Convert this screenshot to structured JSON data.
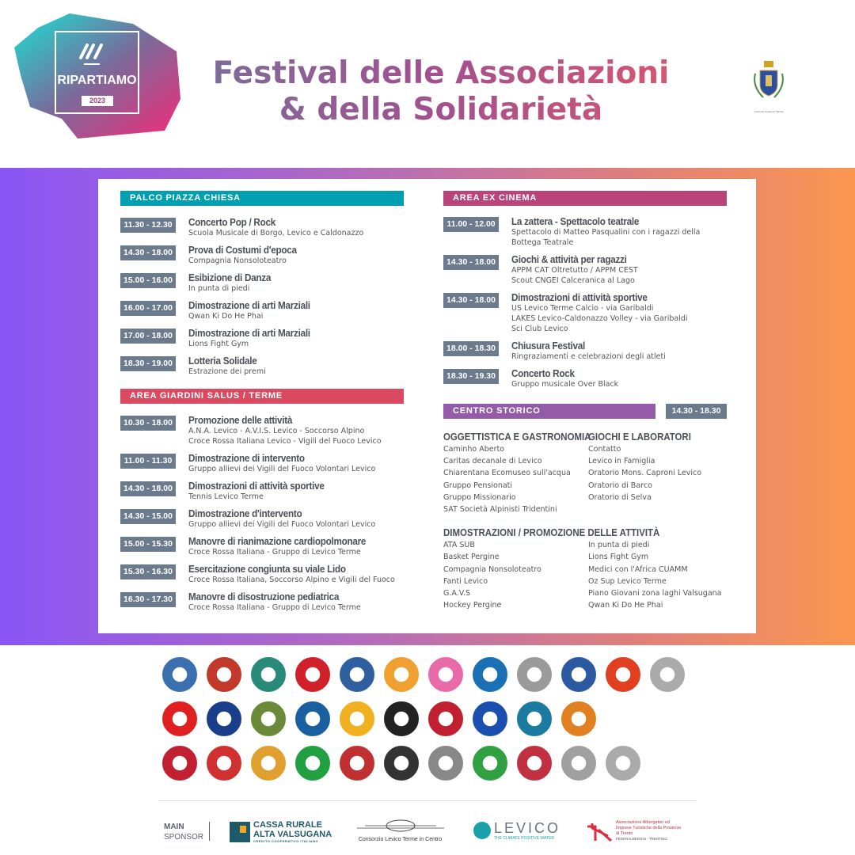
{
  "header": {
    "logo_text": "RIPARTIAMO",
    "logo_year": "2023",
    "title_line1": "Festival delle Associazioni",
    "title_line2": "& della Solidarietà",
    "crest_caption": "Comune di Levico Terme"
  },
  "colors": {
    "teal": "#00a0b0",
    "red": "#dc4a62",
    "magenta": "#b8447a",
    "purple": "#945ca8",
    "time_badge": "#6b7a8c",
    "band_left": "#8a55f6",
    "band_right": "#fb9650"
  },
  "palco": {
    "title": "PALCO PIAZZA CHIESA",
    "events": [
      {
        "time": "11.30 - 12.30",
        "title": "Concerto Pop / Rock",
        "sub": [
          "Scuola Musicale di Borgo, Levico e Caldonazzo"
        ]
      },
      {
        "time": "14.30 - 18.00",
        "title": "Prova di Costumi d'epoca",
        "sub": [
          "Compagnia Nonsoloteatro"
        ]
      },
      {
        "time": "15.00 - 16.00",
        "title": "Esibizione di Danza",
        "sub": [
          "In punta di piedi"
        ]
      },
      {
        "time": "16.00 - 17.00",
        "title": "Dimostrazione di arti Marziali",
        "sub": [
          "Qwan Ki Do He Phai"
        ]
      },
      {
        "time": "17.00 - 18.00",
        "title": "Dimostrazione di arti Marziali",
        "sub": [
          "Lions Fight Gym"
        ]
      },
      {
        "time": "18.30 - 19.00",
        "title": "Lotteria Solidale",
        "sub": [
          "Estrazione dei premi"
        ]
      }
    ]
  },
  "giardini": {
    "title": "AREA GIARDINI SALUS / TERME",
    "events": [
      {
        "time": "10.30 - 18.00",
        "title": "Promozione delle attività",
        "sub": [
          "A.N.A. Levico - A.V.I.S. Levico - Soccorso Alpino",
          "Croce Rossa Italiana Levico - Vigili del Fuoco Levico"
        ]
      },
      {
        "time": "11.00 - 11.30",
        "title": "Dimostrazione di intervento",
        "sub": [
          "Gruppo allievi dei Vigili del Fuoco Volontari Levico"
        ]
      },
      {
        "time": "14.30 - 18.00",
        "title": "Dimostrazioni di attività sportive",
        "sub": [
          "Tennis Levico Terme"
        ]
      },
      {
        "time": "14.30 - 15.00",
        "title": "Dimostrazione d'intervento",
        "sub": [
          "Gruppo allievi dei Vigili del Fuoco Volontari Levico"
        ]
      },
      {
        "time": "15.00 - 15.30",
        "title": "Manovre di rianimazione cardiopolmonare",
        "sub": [
          "Croce Rossa Italiana - Gruppo di Levico Terme"
        ]
      },
      {
        "time": "15.30 - 16.30",
        "title": "Esercitazione congiunta su viale Lido",
        "sub": [
          "Croce Rossa Italiana, Soccorso Alpino e Vigili del Fuoco"
        ]
      },
      {
        "time": "16.30 - 17.30",
        "title": "Manovre di disostruzione pediatrica",
        "sub": [
          "Croce Rossa Italiana - Gruppo di Levico Terme"
        ]
      }
    ]
  },
  "cinema": {
    "title": "AREA EX CINEMA",
    "events": [
      {
        "time": "11.00 - 12.00",
        "title": "La zattera - Spettacolo teatrale",
        "sub": [
          "Spettacolo di Matteo Pasqualini con i ragazzi della",
          "Bottega Teatrale"
        ]
      },
      {
        "time": "14.30 - 18.00",
        "title": "Giochi & attività per ragazzi",
        "sub": [
          "APPM CAT Oltretutto / APPM CEST",
          "Scout CNGEI Calceranica al Lago"
        ]
      },
      {
        "time": "14.30 - 18.00",
        "title": "Dimostrazioni di attività sportive",
        "sub": [
          "US Levico Terme Calcio - via Garibaldi",
          "LAKES Levico-Caldonazzo Volley - via Garibaldi",
          "Sci Club Levico"
        ]
      },
      {
        "time": "18.00 - 18.30",
        "title": "Chiusura Festival",
        "sub": [
          "Ringraziamenti e celebrazioni degli atleti"
        ]
      },
      {
        "time": "18.30 - 19.30",
        "title": "Concerto Rock",
        "sub": [
          "Gruppo musicale Over Black"
        ]
      }
    ]
  },
  "centro": {
    "title": "CENTRO STORICO",
    "time": "14.30 - 18.30",
    "oggettistica": {
      "title": "OGGETTISTICA E GASTRONOMIA",
      "items": [
        "Caminho Aberto",
        "Caritas decanale di Levico",
        "Chiarentana Ecomuseo sull'acqua",
        "Gruppo Pensionati",
        "Gruppo Missionario",
        "SAT Società Alpinisti Tridentini"
      ]
    },
    "giochi": {
      "title": "GIOCHI E LABORATORI",
      "items": [
        "Contatto",
        "Levico in Famiglia",
        "Oratorio Mons. Caproni Levico",
        "Oratorio di Barco",
        "Oratorio di Selva"
      ]
    },
    "dimostrazioni": {
      "title": "DIMOSTRAZIONI / PROMOZIONE DELLE ATTIVITÀ",
      "left": [
        "ATA SUB",
        "Basket Pergine",
        "Compagnia Nonsoloteatro",
        "Fanti Levico",
        "G.A.V.S",
        "Hockey Pergine"
      ],
      "right": [
        "In punta di piedi",
        "Lions Fight Gym",
        "Medici con l'Africa CUAMM",
        "Oz Sup Levico Terme",
        "Piano Giovani zona laghi Valsugana",
        "Qwan Ki Do He Phai"
      ]
    }
  },
  "partner_logos": [
    [
      "#3a6fb0",
      "#c0392b",
      "#2a8a7a",
      "#d0202a",
      "#2f5f9f",
      "#f0a030",
      "#e86aa8",
      "#1a6fb5",
      "#9a9a9a",
      "#2c5aa0",
      "#e04020",
      "#aaaaaa"
    ],
    [
      "#e02020",
      "#1a3f8a",
      "#6a8a3a",
      "#1a5fa0",
      "#f0b020",
      "#222222",
      "#c02030",
      "#1a4fb0",
      "#1a7aa0",
      "#e08020",
      "#ffffff",
      "#ffffff"
    ],
    [
      "#c02030",
      "#d03030",
      "#e0a030",
      "#20a040",
      "#c03030",
      "#333333",
      "#888888",
      "#30a040",
      "#c03040",
      "#a0a0a0",
      "#aaaaaa",
      "#ffffff"
    ]
  ],
  "sponsors": {
    "main_line1": "MAIN",
    "main_line2": "SPONSOR",
    "cassa_line1": "CASSA RURALE",
    "cassa_line2": "ALTA VALSUGANA",
    "cassa_sub": "CREDITO COOPERATIVO ITALIANO",
    "consorzio": "Consorzio Levico Terme in Centro",
    "levico": "LEVICO",
    "levico_sub": "THE CLIMATE POSITIVE WATER",
    "albergatori": "Associazione Albergatori ed Imprese Turistiche della Provincia di Trento",
    "federalberghi": "FEDERALBERGHI - TRENTINO"
  }
}
